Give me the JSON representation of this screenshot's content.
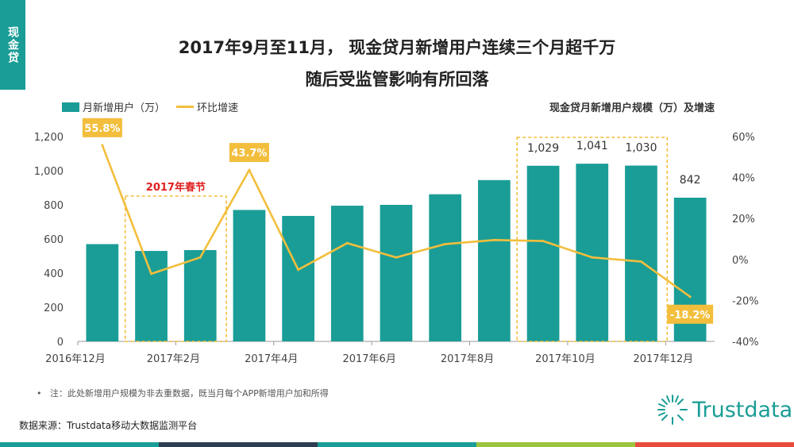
{
  "side_tab": "现金贷",
  "title_line1": "2017年9月至11月， 现金贷月新增用户连续三个月超千万",
  "title_line2": "随后受监管影响有所回落",
  "legend": {
    "bar": "月新增用户（万）",
    "line": "环比增速"
  },
  "chart_title": "现金贷月新增用户规模（万）及增速",
  "annotation_spring": "2017年春节",
  "note": "注：此处新增用户规模为非去重数据，既当月每个APP新增用户加和所得",
  "source": "数据来源：Trustdata移动大数据监测平台",
  "logo": "Trustdata",
  "colors": {
    "bar": "#1a9d96",
    "line": "#f2be3c",
    "callout_bg": "#f2be3c",
    "spring_text": "#e02020"
  },
  "chart_data": {
    "type": "bar",
    "categories": [
      "2016年12月",
      "2017年1月",
      "2017年2月",
      "2017年3月",
      "2017年4月",
      "2017年5月",
      "2017年6月",
      "2017年7月",
      "2017年8月",
      "2017年9月",
      "2017年10月",
      "2017年11月",
      "2017年12月"
    ],
    "x_tick_labels": [
      "2016年12月",
      "2017年2月",
      "2017年4月",
      "2017年6月",
      "2017年8月",
      "2017年10月",
      "2017年12月"
    ],
    "series": [
      {
        "name": "月新增用户（万）",
        "axis": "left",
        "values": [
          570,
          530,
          535,
          770,
          735,
          795,
          800,
          862,
          945,
          1029,
          1041,
          1030,
          842
        ]
      },
      {
        "name": "环比增速",
        "axis": "right",
        "type": "line",
        "values": [
          55.8,
          -7,
          1,
          43.7,
          -5,
          8,
          1,
          7.5,
          9.5,
          9,
          1,
          -1,
          -18.2
        ]
      }
    ],
    "left_axis": {
      "ylim": [
        0,
        1200
      ],
      "ticks": [
        "0",
        "200",
        "400",
        "600",
        "800",
        "1,000",
        "1,200"
      ]
    },
    "right_axis": {
      "ylim": [
        -40,
        60
      ],
      "ticks": [
        "-40%",
        "-20%",
        "0%",
        "20%",
        "40%",
        "60%"
      ]
    },
    "bar_labels": [
      {
        "index": 9,
        "text": "1,029"
      },
      {
        "index": 10,
        "text": "1,041"
      },
      {
        "index": 11,
        "text": "1,030"
      },
      {
        "index": 12,
        "text": "842"
      }
    ],
    "line_callouts": [
      {
        "index": 0,
        "text": "55.8%"
      },
      {
        "index": 3,
        "text": "43.7%"
      },
      {
        "index": 12,
        "text": "-18.2%"
      }
    ],
    "highlight_boxes": [
      {
        "from": 1,
        "to": 2,
        "label": "2017年春节"
      },
      {
        "from": 9,
        "to": 11,
        "label": ""
      }
    ]
  }
}
